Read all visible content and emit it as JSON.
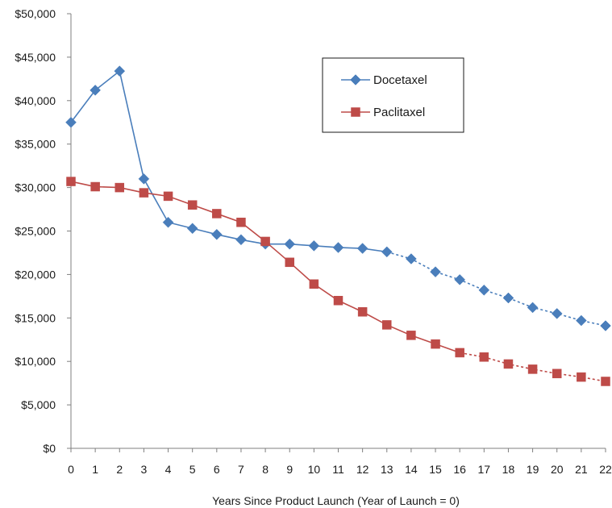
{
  "chart_data": {
    "type": "line",
    "title": "",
    "xlabel": "Years Since Product Launch (Year of Launch = 0)",
    "ylabel": "",
    "x": [
      0,
      1,
      2,
      3,
      4,
      5,
      6,
      7,
      8,
      9,
      10,
      11,
      12,
      13,
      14,
      15,
      16,
      17,
      18,
      19,
      20,
      21,
      22
    ],
    "xlim": [
      0,
      22
    ],
    "ylim": [
      0,
      50000
    ],
    "y_ticks": [
      {
        "value": 0,
        "label": "$0"
      },
      {
        "value": 5000,
        "label": "$5,000"
      },
      {
        "value": 10000,
        "label": "$10,000"
      },
      {
        "value": 15000,
        "label": "$15,000"
      },
      {
        "value": 20000,
        "label": "$20,000"
      },
      {
        "value": 25000,
        "label": "$25,000"
      },
      {
        "value": 30000,
        "label": "$30,000"
      },
      {
        "value": 35000,
        "label": "$35,000"
      },
      {
        "value": 40000,
        "label": "$40,000"
      },
      {
        "value": 45000,
        "label": "$45,000"
      },
      {
        "value": 50000,
        "label": "$50,000"
      }
    ],
    "x_tick_labels": [
      "0",
      "1",
      "2",
      "3",
      "4",
      "5",
      "6",
      "7",
      "8",
      "9",
      "10",
      "11",
      "12",
      "13",
      "14",
      "15",
      "16",
      "17",
      "18",
      "19",
      "20",
      "21",
      "22"
    ],
    "grid": false,
    "legend_position": "top-right",
    "series": [
      {
        "name": "Docetaxel",
        "color": "#4a7ebb",
        "marker": "diamond",
        "solid_until_x": 13,
        "values": [
          37500,
          41200,
          43400,
          31000,
          26000,
          25300,
          24600,
          24000,
          23500,
          23500,
          23300,
          23100,
          23000,
          22600,
          21800,
          20300,
          19400,
          18200,
          17300,
          16200,
          15500,
          14700,
          14100
        ]
      },
      {
        "name": "Paclitaxel",
        "color": "#be4b48",
        "marker": "square",
        "solid_until_x": 16,
        "values": [
          30700,
          30100,
          30000,
          29400,
          29000,
          28000,
          27000,
          26000,
          23800,
          21400,
          18900,
          17000,
          15700,
          14200,
          13000,
          12000,
          11000,
          10500,
          9700,
          9100,
          8600,
          8200,
          7700
        ]
      }
    ]
  }
}
